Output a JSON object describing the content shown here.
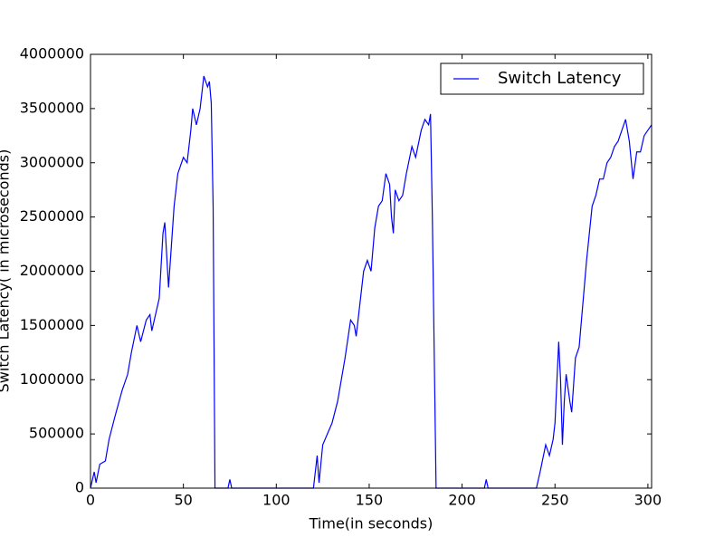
{
  "chart_data": {
    "type": "line",
    "xlabel": "Time(in seconds)",
    "ylabel": "Switch Latency( in microseconds)",
    "x": [
      0,
      2,
      3,
      5,
      8,
      10,
      13,
      17,
      20,
      22,
      25,
      27,
      30,
      32,
      33,
      35,
      37,
      39,
      40,
      42,
      45,
      47,
      50,
      52,
      54,
      55,
      57,
      59,
      61,
      63,
      64,
      65,
      66,
      67,
      70,
      74,
      75,
      76,
      90,
      105,
      120,
      122,
      123,
      125,
      130,
      133,
      137,
      140,
      142,
      143,
      145,
      147,
      149,
      151,
      153,
      155,
      157,
      159,
      161,
      162,
      163,
      164,
      166,
      168,
      170,
      173,
      175,
      178,
      180,
      182,
      183,
      184,
      186,
      200,
      212,
      213,
      214,
      230,
      240,
      242,
      245,
      247,
      249,
      250,
      252,
      253,
      254,
      255,
      256,
      258,
      259,
      261,
      263,
      265,
      267,
      270,
      272,
      274,
      276,
      278,
      280,
      282,
      284,
      286,
      288,
      290,
      292,
      294,
      296,
      298,
      300,
      302
    ],
    "series": [
      {
        "name": "Switch Latency",
        "color": "#0000ff",
        "values": [
          0,
          150000,
          50000,
          220000,
          250000,
          450000,
          650000,
          900000,
          1050000,
          1250000,
          1500000,
          1350000,
          1550000,
          1600000,
          1450000,
          1600000,
          1750000,
          2350000,
          2450000,
          1850000,
          2600000,
          2900000,
          3050000,
          3000000,
          3300000,
          3500000,
          3350000,
          3500000,
          3800000,
          3700000,
          3750000,
          3550000,
          2600000,
          0,
          0,
          0,
          80000,
          0,
          0,
          0,
          0,
          300000,
          50000,
          400000,
          600000,
          800000,
          1200000,
          1550000,
          1500000,
          1400000,
          1700000,
          2000000,
          2100000,
          2000000,
          2400000,
          2600000,
          2650000,
          2900000,
          2800000,
          2500000,
          2350000,
          2750000,
          2650000,
          2700000,
          2900000,
          3150000,
          3050000,
          3300000,
          3400000,
          3350000,
          3450000,
          2500000,
          0,
          0,
          0,
          80000,
          0,
          0,
          0,
          150000,
          400000,
          300000,
          450000,
          600000,
          1350000,
          1000000,
          400000,
          800000,
          1050000,
          800000,
          700000,
          1200000,
          1300000,
          1700000,
          2100000,
          2600000,
          2700000,
          2850000,
          2850000,
          3000000,
          3050000,
          3150000,
          3200000,
          3300000,
          3400000,
          3200000,
          2850000,
          3100000,
          3100000,
          3250000,
          3300000,
          3350000
        ]
      }
    ],
    "xlim": [
      0,
      302
    ],
    "ylim": [
      0,
      4000000
    ],
    "xticks": [
      0,
      50,
      100,
      150,
      200,
      250,
      300
    ],
    "yticks": [
      0,
      500000,
      1000000,
      1500000,
      2000000,
      2500000,
      3000000,
      3500000,
      4000000
    ],
    "grid": false,
    "legend": "upper right"
  }
}
